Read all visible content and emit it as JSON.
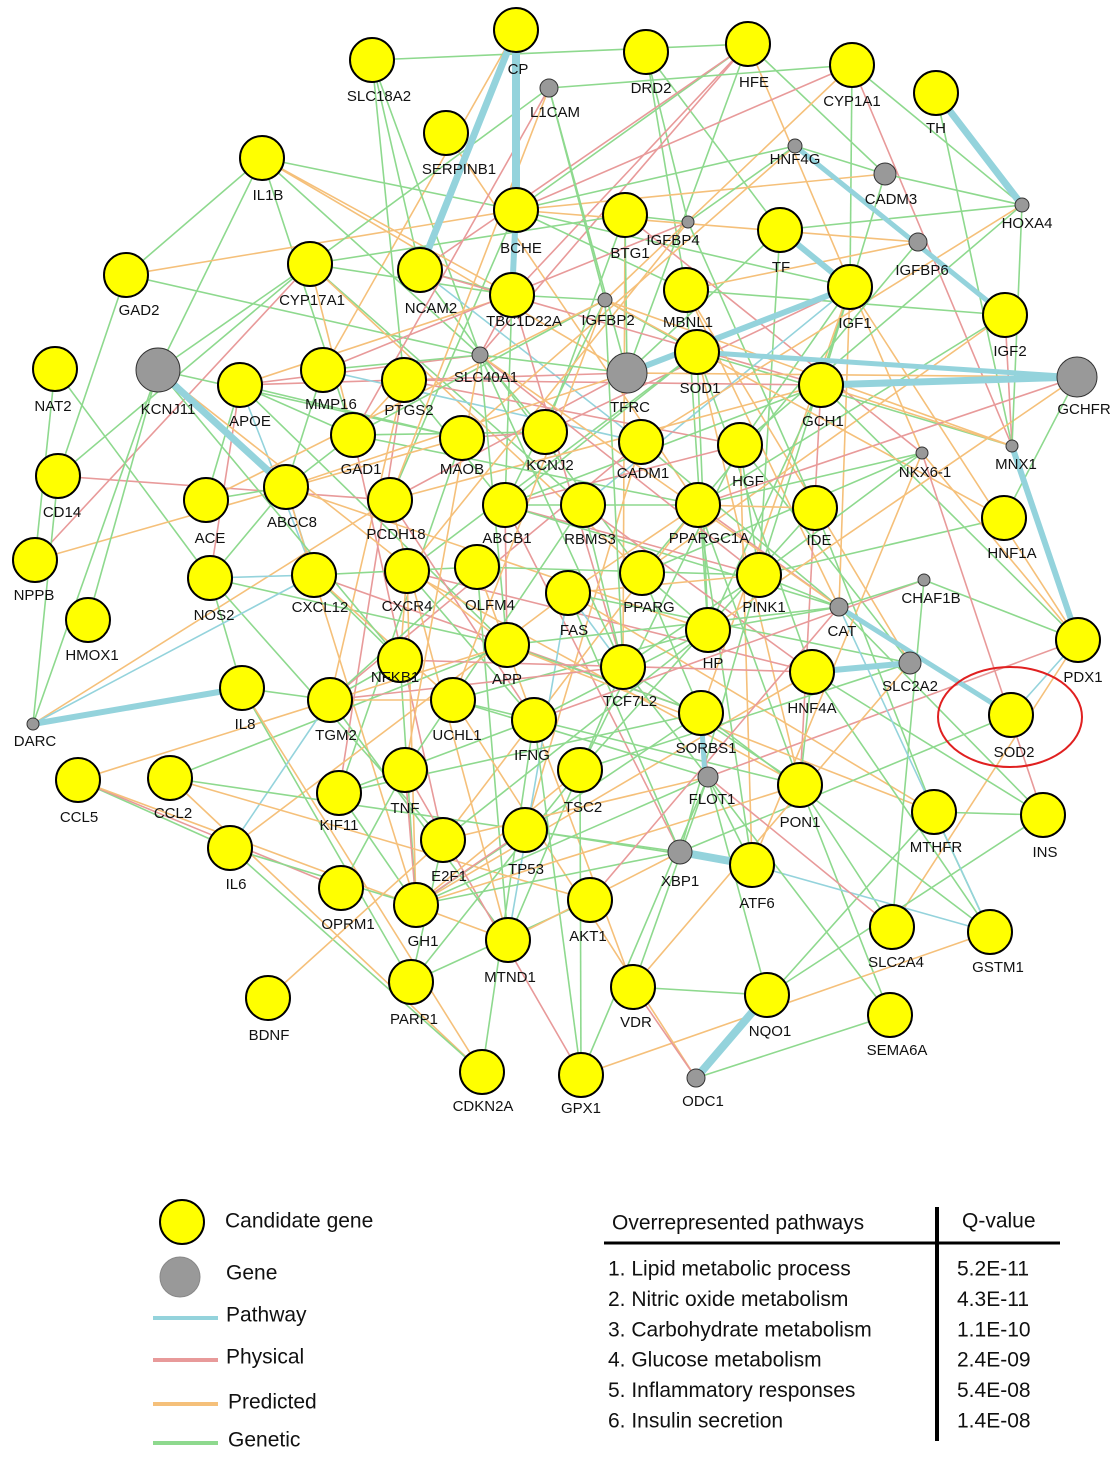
{
  "nodes": {
    "candidate_genes": [
      "CP",
      "SLC18A2",
      "DRD2",
      "HFE",
      "CYP1A1",
      "TH",
      "SERPINB1",
      "IL1B",
      "BCHE",
      "BTG1",
      "TF",
      "GAD2",
      "CYP17A1",
      "NCAM2",
      "TBC1D22A",
      "MBNL1",
      "IGF1",
      "IGF2",
      "SOD1",
      "NAT2",
      "APOE",
      "MMP16",
      "PTGS2",
      "GCH1",
      "GAD1",
      "MAOB",
      "KCNJ2",
      "CADM1",
      "HGF",
      "CD14",
      "ACE",
      "ABCC8",
      "PCDH18",
      "ABCB1",
      "RBMS3",
      "PPARGC1A",
      "IDE",
      "HNF1A",
      "NPPB",
      "NOS2",
      "CXCL12",
      "CXCR4",
      "OLFM4",
      "FAS",
      "PPARG",
      "PINK1",
      "HMOX1",
      "HP",
      "PDX1",
      "APP",
      "NFKB1",
      "TCF7L2",
      "IL8",
      "HNF4A",
      "TGM2",
      "UCHL1",
      "SORBS1",
      "SOD2",
      "IFNG",
      "CCL5",
      "CCL2",
      "TNF",
      "KIF11",
      "TSC2",
      "PON1",
      "MTHFR",
      "INS",
      "IL6",
      "E2F1",
      "TP53",
      "ATF6",
      "OPRM1",
      "GH1",
      "AKT1",
      "SLC2A4",
      "GSTM1",
      "MTND1",
      "PARP1",
      "VDR",
      "BDNF",
      "NQO1",
      "SEMA6A",
      "CDKN2A",
      "GPX1"
    ],
    "genes": [
      "L1CAM",
      "HNF4G",
      "CADM3",
      "HOXA4",
      "IGFBP4",
      "IGFBP6",
      "IGFBP2",
      "KCNJ11",
      "SLC40A1",
      "TFRC",
      "GCHFR",
      "NKX6-1",
      "MNX1",
      "CHAF1B",
      "CAT",
      "SLC2A2",
      "DARC",
      "FLOT1",
      "XBP1",
      "ODC1"
    ]
  },
  "legend": {
    "candidate_gene": "Candidate gene",
    "gene": "Gene",
    "edges": [
      "Pathway",
      "Physical",
      "Predicted",
      "Genetic"
    ]
  },
  "table": {
    "headers": [
      "Overrepresented pathways",
      "Q-value"
    ],
    "rows": [
      [
        "1. Lipid metabolic process",
        "5.2E-11"
      ],
      [
        "2. Nitric oxide metabolism",
        "4.3E-11"
      ],
      [
        "3. Carbohydrate metabolism",
        "1.1E-10"
      ],
      [
        "4. Glucose metabolism",
        "2.4E-09"
      ],
      [
        "5. Inflammatory responses",
        "5.4E-08"
      ],
      [
        "6. Insulin secretion",
        "1.4E-08"
      ]
    ]
  }
}
